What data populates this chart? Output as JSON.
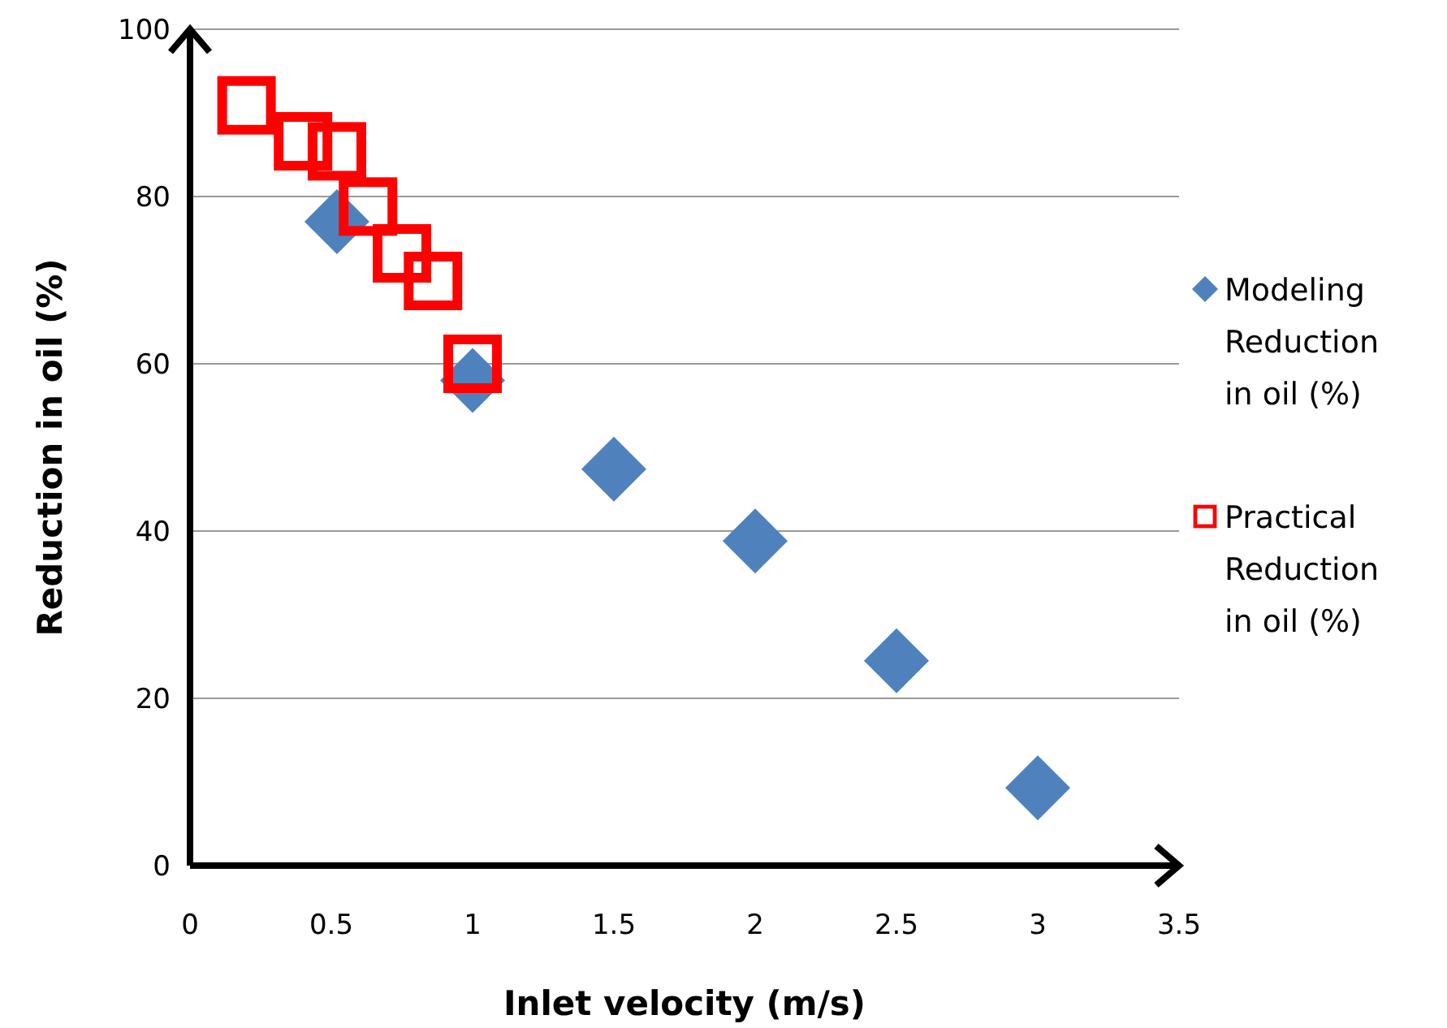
{
  "chart_data": {
    "type": "scatter",
    "xlabel": "Inlet velocity (m/s)",
    "ylabel": "Reduction in oil (%)",
    "xlim": [
      0,
      3.5
    ],
    "xticks": [
      0,
      0.5,
      1,
      1.5,
      2,
      2.5,
      3,
      3.5
    ],
    "ylim": [
      0,
      100
    ],
    "yticks": [
      0,
      20,
      40,
      60,
      80,
      100
    ],
    "grid": "y",
    "legend": "right",
    "series": [
      {
        "name": "Modeling Reduction in oil (%)",
        "color": "#4f81bd",
        "marker": "diamond",
        "x": [
          0.52,
          1,
          1.5,
          2,
          2.5,
          3
        ],
        "values": [
          77,
          58,
          47.4,
          38.8,
          24.5,
          9.3
        ]
      },
      {
        "name": "Practical Reduction in oil (%)",
        "color": "#ff0000",
        "marker": "square",
        "x": [
          0.2,
          0.4,
          0.52,
          0.63,
          0.75,
          0.86,
          1
        ],
        "values": [
          90.9,
          86.6,
          85.4,
          78.8,
          73.2,
          69.9,
          60
        ]
      }
    ]
  }
}
